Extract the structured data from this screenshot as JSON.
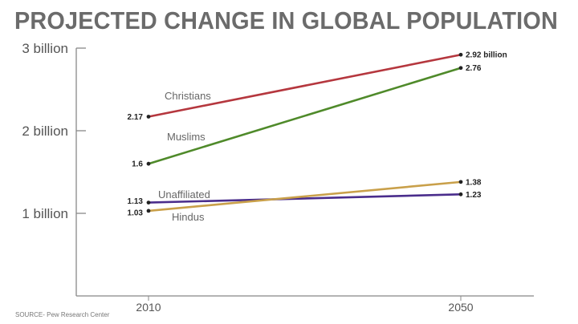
{
  "chart_data": {
    "type": "line",
    "title": "PROJECTED CHANGE IN GLOBAL POPULATION",
    "source": "SOURCE- Pew Research Center",
    "x": [
      "2010",
      "2050"
    ],
    "ylim": [
      0,
      3
    ],
    "yticks": [
      {
        "value": 1,
        "label": "1 billion"
      },
      {
        "value": 2,
        "label": "2 billion"
      },
      {
        "value": 3,
        "label": "3 billion"
      }
    ],
    "grid": false,
    "legend": "inline labels",
    "series": [
      {
        "name": "Christians",
        "values": [
          2.17,
          2.92
        ],
        "labels": [
          "2.17",
          "2.92 billion"
        ],
        "color": "#b5373e"
      },
      {
        "name": "Muslims",
        "values": [
          1.6,
          2.76
        ],
        "labels": [
          "1.6",
          "2.76"
        ],
        "color": "#4f8a2a"
      },
      {
        "name": "Unaffiliated",
        "values": [
          1.13,
          1.23
        ],
        "labels": [
          "1.13",
          "1.23"
        ],
        "color": "#4a2d8c"
      },
      {
        "name": "Hindus",
        "values": [
          1.03,
          1.38
        ],
        "labels": [
          "1.03",
          "1.38"
        ],
        "color": "#c9a04a"
      }
    ]
  }
}
